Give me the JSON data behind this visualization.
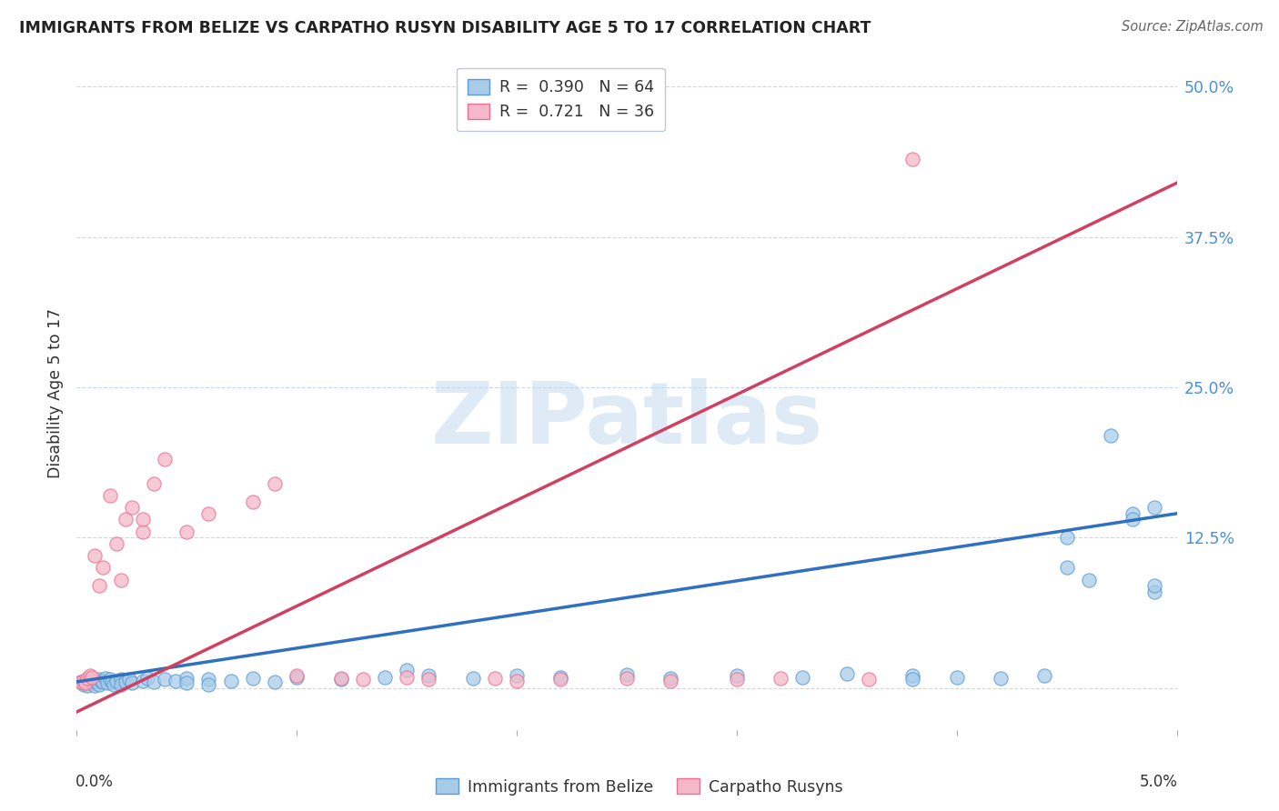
{
  "title": "IMMIGRANTS FROM BELIZE VS CARPATHO RUSYN DISABILITY AGE 5 TO 17 CORRELATION CHART",
  "source": "Source: ZipAtlas.com",
  "ylabel": "Disability Age 5 to 17",
  "xlim": [
    0.0,
    0.05
  ],
  "ylim": [
    -0.035,
    0.525
  ],
  "ytick_vals": [
    0.0,
    0.125,
    0.25,
    0.375,
    0.5
  ],
  "ytick_labels": [
    "",
    "12.5%",
    "25.0%",
    "37.5%",
    "50.0%"
  ],
  "xtick_vals": [
    0.0,
    0.01,
    0.02,
    0.03,
    0.04,
    0.05
  ],
  "blue_scatter_color": "#a8cce8",
  "blue_edge_color": "#5b9bd5",
  "pink_scatter_color": "#f4b8c8",
  "pink_edge_color": "#e87090",
  "line_blue": "#3070c0",
  "line_pink": "#d04060",
  "watermark_color": "#c8ddf0",
  "watermark_text": "ZIPatlas",
  "R_blue": 0.39,
  "N_blue": 64,
  "R_pink": 0.721,
  "N_pink": 36,
  "legend_label_blue": "Immigrants from Belize",
  "legend_label_pink": "Carpatho Rusyns",
  "blue_line_x0": 0.0,
  "blue_line_y0": 0.005,
  "blue_line_x1": 0.05,
  "blue_line_y1": 0.145,
  "pink_line_x0": 0.0,
  "pink_line_y0": -0.02,
  "pink_line_x1": 0.05,
  "pink_line_y1": 0.42,
  "blue_x": [
    0.0002,
    0.0003,
    0.0004,
    0.0005,
    0.0005,
    0.0006,
    0.0007,
    0.0008,
    0.0008,
    0.0009,
    0.001,
    0.001,
    0.0011,
    0.0012,
    0.0013,
    0.0014,
    0.0015,
    0.0016,
    0.0017,
    0.0018,
    0.002,
    0.002,
    0.0022,
    0.0024,
    0.0025,
    0.003,
    0.0032,
    0.0035,
    0.004,
    0.0045,
    0.005,
    0.005,
    0.006,
    0.006,
    0.007,
    0.008,
    0.009,
    0.01,
    0.012,
    0.014,
    0.015,
    0.016,
    0.018,
    0.02,
    0.022,
    0.025,
    0.027,
    0.03,
    0.033,
    0.035,
    0.038,
    0.038,
    0.04,
    0.042,
    0.044,
    0.045,
    0.046,
    0.047,
    0.048,
    0.049,
    0.049,
    0.049,
    0.048,
    0.045
  ],
  "blue_y": [
    0.005,
    0.003,
    0.004,
    0.006,
    0.002,
    0.005,
    0.004,
    0.006,
    0.002,
    0.005,
    0.007,
    0.003,
    0.006,
    0.005,
    0.008,
    0.004,
    0.007,
    0.005,
    0.003,
    0.006,
    0.007,
    0.003,
    0.005,
    0.007,
    0.004,
    0.006,
    0.008,
    0.005,
    0.007,
    0.006,
    0.008,
    0.004,
    0.007,
    0.003,
    0.006,
    0.008,
    0.005,
    0.009,
    0.007,
    0.009,
    0.015,
    0.01,
    0.008,
    0.01,
    0.009,
    0.011,
    0.008,
    0.01,
    0.009,
    0.012,
    0.01,
    0.007,
    0.009,
    0.008,
    0.01,
    0.1,
    0.09,
    0.21,
    0.145,
    0.08,
    0.085,
    0.15,
    0.14,
    0.125
  ],
  "pink_x": [
    0.0002,
    0.0003,
    0.0004,
    0.0005,
    0.0006,
    0.0007,
    0.0008,
    0.001,
    0.0012,
    0.0015,
    0.0018,
    0.002,
    0.0022,
    0.0025,
    0.003,
    0.003,
    0.0035,
    0.004,
    0.005,
    0.006,
    0.008,
    0.009,
    0.01,
    0.012,
    0.013,
    0.015,
    0.016,
    0.019,
    0.02,
    0.022,
    0.025,
    0.027,
    0.03,
    0.032,
    0.036,
    0.038
  ],
  "pink_y": [
    0.005,
    0.006,
    0.004,
    0.008,
    0.01,
    0.009,
    0.11,
    0.085,
    0.1,
    0.16,
    0.12,
    0.09,
    0.14,
    0.15,
    0.13,
    0.14,
    0.17,
    0.19,
    0.13,
    0.145,
    0.155,
    0.17,
    0.01,
    0.008,
    0.007,
    0.009,
    0.007,
    0.008,
    0.006,
    0.007,
    0.008,
    0.006,
    0.007,
    0.008,
    0.007,
    0.44
  ]
}
